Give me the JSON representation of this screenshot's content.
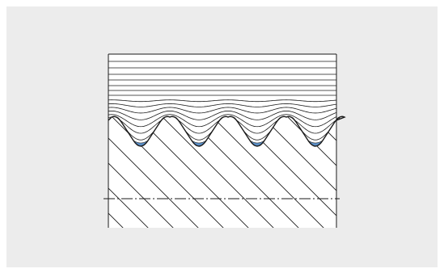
{
  "figure": {
    "colors": {
      "background": "#ececec",
      "drawing_area": "#ffffff",
      "line": "#1a1a1a",
      "root_highlight": "#5b8fc7"
    },
    "thread_teeth_count": 4,
    "icon": "thread-section-diagram"
  }
}
